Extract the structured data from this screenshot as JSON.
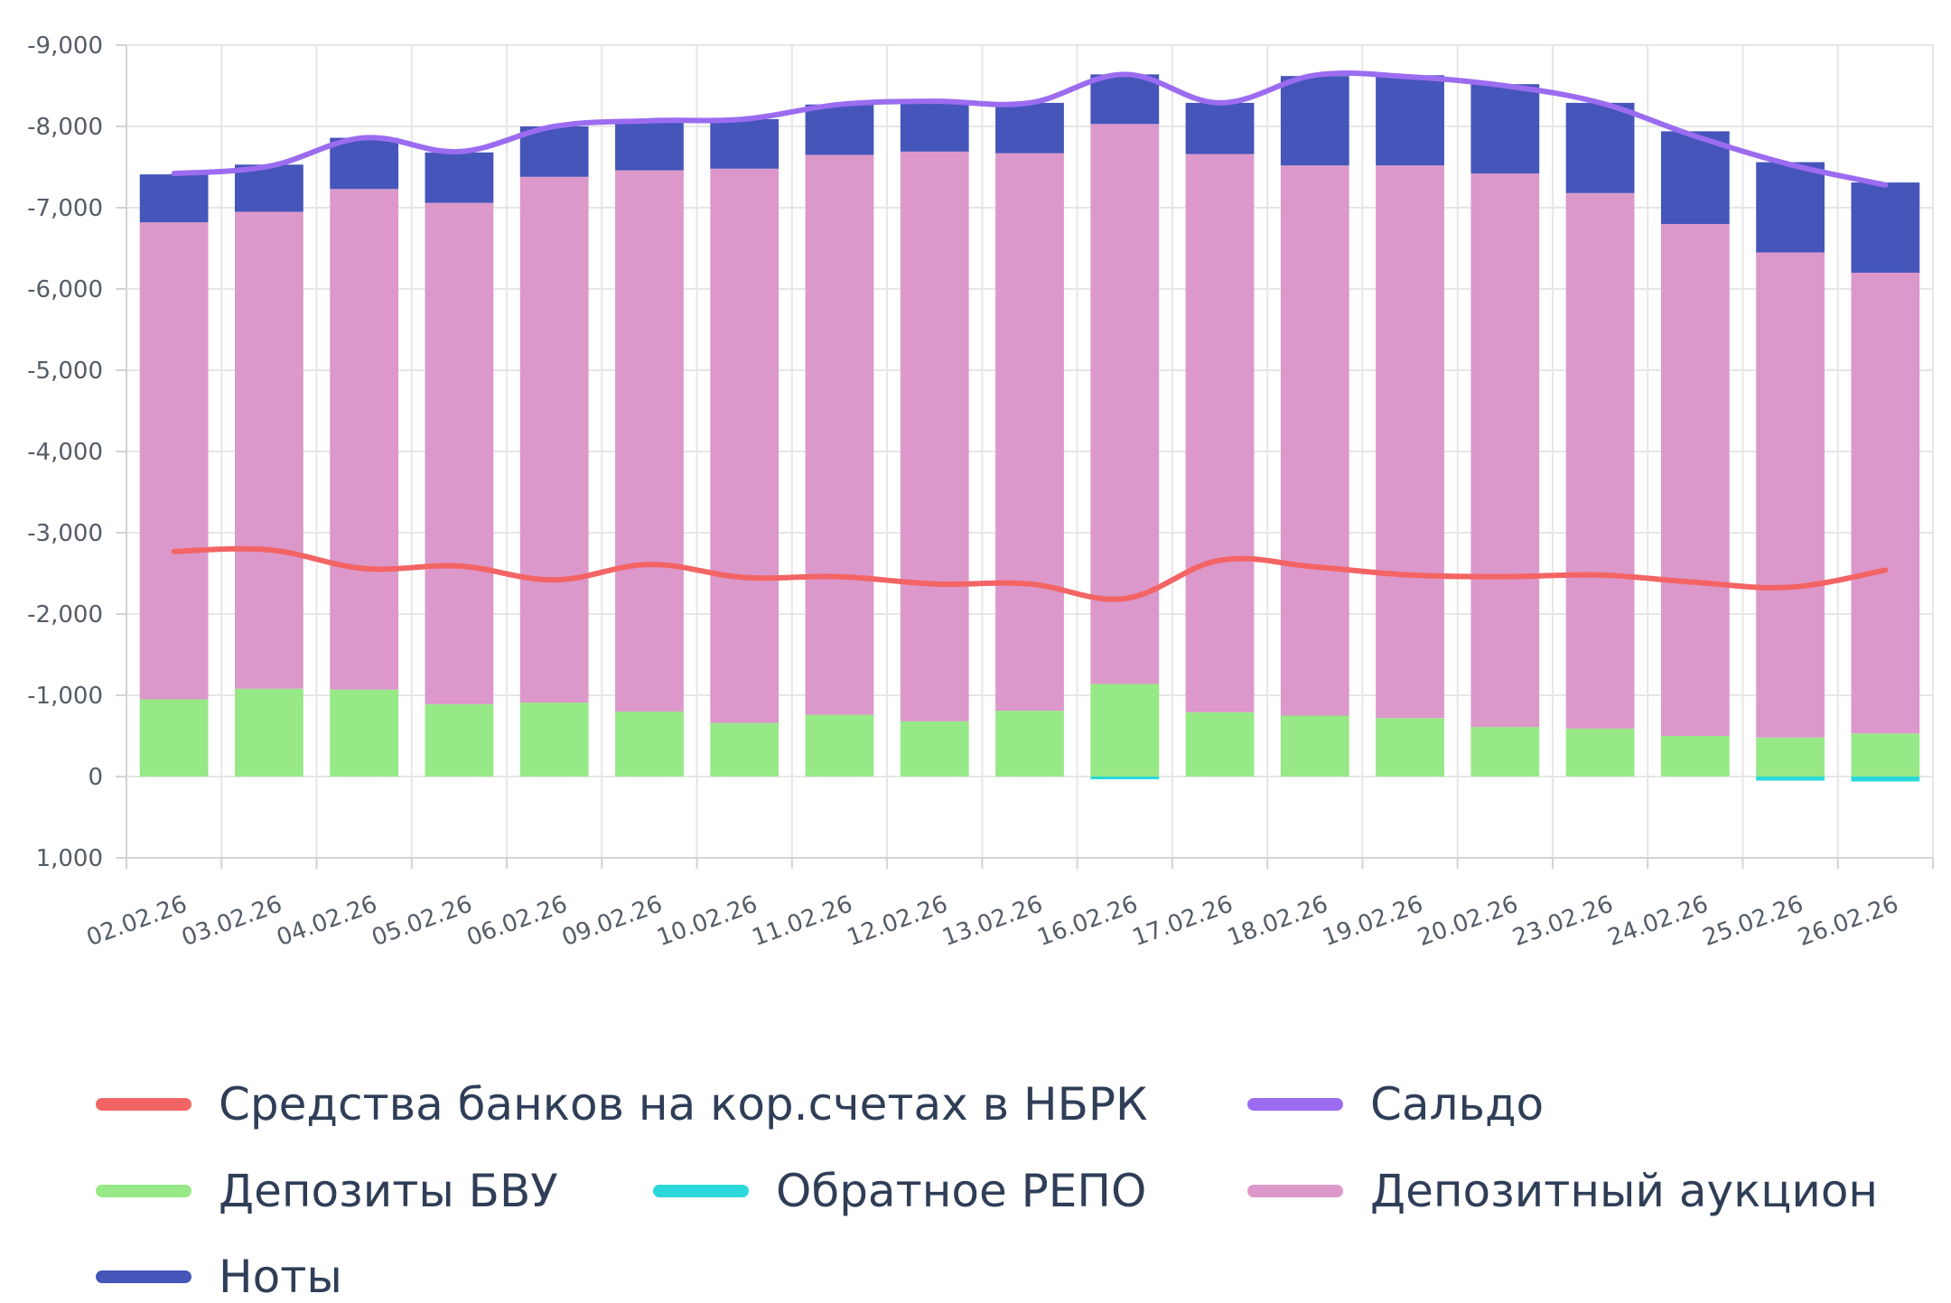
{
  "colors": {
    "reserves": "#f36464",
    "saldo": "#9b6cf0",
    "deposits": "#96e986",
    "repo": "#2ad8dc",
    "auction": "#dc98ca",
    "notes": "#4555b9"
  },
  "chart_data": {
    "type": "bar",
    "stacked": true,
    "y_inverted": true,
    "ylim": [
      -9000,
      1000
    ],
    "yticks": [
      -9000,
      -8000,
      -7000,
      -6000,
      -5000,
      -4000,
      -3000,
      -2000,
      -1000,
      0,
      1000
    ],
    "ytick_labels": [
      "-9,000",
      "-8,000",
      "-7,000",
      "-6,000",
      "-5,000",
      "-4,000",
      "-3,000",
      "-2,000",
      "-1,000",
      "0",
      "1,000"
    ],
    "categories": [
      "02.02.26",
      "03.02.26",
      "04.02.26",
      "05.02.26",
      "06.02.26",
      "09.02.26",
      "10.02.26",
      "11.02.26",
      "12.02.26",
      "13.02.26",
      "16.02.26",
      "17.02.26",
      "18.02.26",
      "19.02.26",
      "20.02.26",
      "23.02.26",
      "24.02.26",
      "25.02.26",
      "26.02.26"
    ],
    "series": [
      {
        "name": "Депозиты БВУ",
        "key": "deposits",
        "kind": "bar",
        "values": [
          -950,
          -1080,
          -1070,
          -890,
          -910,
          -800,
          -660,
          -760,
          -680,
          -810,
          -1140,
          -790,
          -750,
          -720,
          -610,
          -590,
          -500,
          -480,
          -530
        ]
      },
      {
        "name": "Обратное РЕПО",
        "key": "repo",
        "kind": "bar",
        "values": [
          0,
          0,
          0,
          0,
          0,
          0,
          0,
          0,
          0,
          0,
          20,
          0,
          0,
          0,
          0,
          0,
          0,
          50,
          60
        ]
      },
      {
        "name": "Депозитный аукцион",
        "key": "auction",
        "kind": "bar",
        "values": [
          -5870,
          -5870,
          -6160,
          -6170,
          -6470,
          -6660,
          -6820,
          -6890,
          -7010,
          -6860,
          -6890,
          -6870,
          -6770,
          -6800,
          -6810,
          -6590,
          -6300,
          -5970,
          -5670
        ]
      },
      {
        "name": "Ноты",
        "key": "notes",
        "kind": "bar",
        "values": [
          -590,
          -580,
          -630,
          -620,
          -620,
          -610,
          -610,
          -620,
          -620,
          -620,
          -610,
          -630,
          -1100,
          -1110,
          -1100,
          -1110,
          -1140,
          -1110,
          -1110
        ]
      },
      {
        "name": "Средства банков на кор.счетах в НБРК",
        "key": "reserves",
        "kind": "line",
        "values": [
          -2770,
          -2790,
          -2560,
          -2590,
          -2420,
          -2610,
          -2450,
          -2460,
          -2370,
          -2370,
          -2190,
          -2660,
          -2580,
          -2480,
          -2460,
          -2480,
          -2390,
          -2330,
          -2540
        ]
      },
      {
        "name": "Сальдо",
        "key": "saldo",
        "kind": "line",
        "values": [
          -7420,
          -7510,
          -7860,
          -7690,
          -8000,
          -8070,
          -8090,
          -8270,
          -8310,
          -8290,
          -8640,
          -8290,
          -8630,
          -8610,
          -8500,
          -8290,
          -7880,
          -7530,
          -7280
        ]
      }
    ]
  },
  "legend": {
    "reserves": "Средства банков на кор.счетах в НБРК",
    "saldo": "Сальдо",
    "deposits": "Депозиты БВУ",
    "repo": "Обратное РЕПО",
    "auction": "Депозитный аукцион",
    "notes": "Ноты"
  }
}
